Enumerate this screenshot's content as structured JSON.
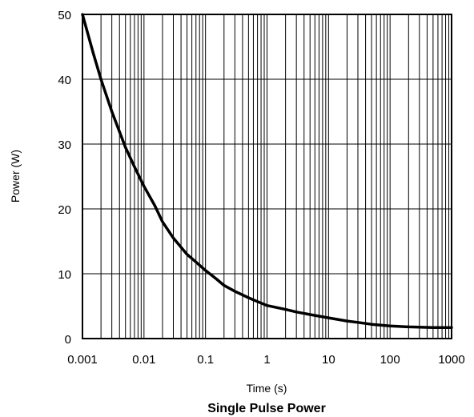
{
  "chart_data": {
    "type": "line",
    "title": "Single Pulse Power",
    "xlabel": "Time (s)",
    "ylabel": "Power (W)",
    "xscale": "log",
    "xlim": [
      0.001,
      1000
    ],
    "ylim": [
      0,
      50
    ],
    "grid": true,
    "x_tick_labels": [
      "0.001",
      "0.01",
      "0.1",
      "1",
      "10",
      "100",
      "1000"
    ],
    "y_tick_labels": [
      "0",
      "10",
      "20",
      "30",
      "40",
      "50"
    ],
    "series": [
      {
        "x": [
          0.001,
          0.0015,
          0.002,
          0.003,
          0.005,
          0.007,
          0.01,
          0.015,
          0.02,
          0.03,
          0.05,
          0.07,
          0.1,
          0.15,
          0.2,
          0.3,
          0.5,
          0.7,
          1,
          2,
          3,
          5,
          10,
          20,
          30,
          50,
          100,
          200,
          300,
          500,
          1000
        ],
        "y": [
          50,
          44,
          40,
          35,
          29.5,
          26.5,
          23.5,
          20.5,
          18,
          15.5,
          13,
          11.8,
          10.5,
          9.2,
          8.2,
          7.3,
          6.3,
          5.7,
          5.1,
          4.5,
          4.1,
          3.7,
          3.2,
          2.7,
          2.5,
          2.2,
          1.95,
          1.8,
          1.75,
          1.7,
          1.7
        ]
      }
    ],
    "colors": {
      "curve": "#000000",
      "grid": "#000000",
      "background": "#ffffff"
    }
  }
}
